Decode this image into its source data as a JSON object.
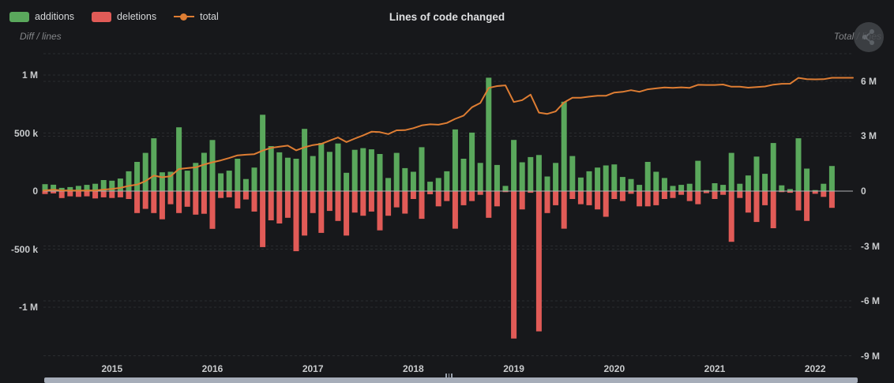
{
  "header": {
    "title": "Lines of code changed"
  },
  "legend": {
    "items": [
      {
        "label": "additions",
        "marker": "rect",
        "color": "#5aa85c"
      },
      {
        "label": "deletions",
        "marker": "rect",
        "color": "#e15b57"
      },
      {
        "label": "total",
        "marker": "line-dot",
        "color": "#de7d33"
      }
    ]
  },
  "corner_icon": "share-graph-icon",
  "colors": {
    "background": "#17181b",
    "additions": "#5aa85c",
    "deletions": "#e15b57",
    "total_line": "#de7d33",
    "zero_line": "#b0b2b5",
    "grid_line": "rgba(220,222,224,0.10)",
    "tick_text": "#c9cbcd",
    "scrollbar": "#a6adb9"
  },
  "chart_data": {
    "type": "combo-bar-line",
    "title": "Lines of code changed",
    "value_unit": "thousands of lines",
    "x": [
      "2014-05",
      "2014-06",
      "2014-07",
      "2014-08",
      "2014-09",
      "2014-10",
      "2014-11",
      "2014-12",
      "2015-01",
      "2015-02",
      "2015-03",
      "2015-04",
      "2015-05",
      "2015-06",
      "2015-07",
      "2015-08",
      "2015-09",
      "2015-10",
      "2015-11",
      "2015-12",
      "2016-01",
      "2016-02",
      "2016-03",
      "2016-04",
      "2016-05",
      "2016-06",
      "2016-07",
      "2016-08",
      "2016-09",
      "2016-10",
      "2016-11",
      "2016-12",
      "2017-01",
      "2017-02",
      "2017-03",
      "2017-04",
      "2017-05",
      "2017-06",
      "2017-07",
      "2017-08",
      "2017-09",
      "2017-10",
      "2017-11",
      "2017-12",
      "2018-01",
      "2018-02",
      "2018-03",
      "2018-04",
      "2018-05",
      "2018-06",
      "2018-07",
      "2018-08",
      "2018-09",
      "2018-10",
      "2018-11",
      "2018-12",
      "2019-01",
      "2019-02",
      "2019-03",
      "2019-04",
      "2019-05",
      "2019-06",
      "2019-07",
      "2019-08",
      "2019-09",
      "2019-10",
      "2019-11",
      "2019-12",
      "2020-01",
      "2020-02",
      "2020-03",
      "2020-04",
      "2020-05",
      "2020-06",
      "2020-07",
      "2020-08",
      "2020-09",
      "2020-10",
      "2020-11",
      "2020-12",
      "2021-01",
      "2021-02",
      "2021-03",
      "2021-04",
      "2021-05",
      "2021-06",
      "2021-07",
      "2021-08",
      "2021-09",
      "2021-10",
      "2021-11",
      "2021-12",
      "2022-01",
      "2022-02",
      "2022-03"
    ],
    "series": [
      {
        "name": "additions",
        "type": "bar",
        "axis": "left",
        "color": "#5aa85c",
        "values": [
          60,
          55,
          28,
          35,
          45,
          54,
          63,
          95,
          90,
          108,
          171,
          252,
          329,
          455,
          162,
          167,
          550,
          176,
          243,
          330,
          440,
          153,
          176,
          279,
          104,
          203,
          658,
          388,
          334,
          288,
          279,
          536,
          302,
          415,
          338,
          410,
          158,
          356,
          370,
          360,
          320,
          113,
          329,
          198,
          167,
          378,
          81,
          113,
          171,
          531,
          279,
          504,
          243,
          977,
          225,
          45,
          441,
          248,
          293,
          311,
          126,
          243,
          770,
          302,
          117,
          171,
          203,
          221,
          230,
          122,
          104,
          54,
          252,
          167,
          113,
          45,
          54,
          63,
          261,
          9,
          68,
          54,
          329,
          63,
          135,
          297,
          149,
          414,
          50,
          18,
          455,
          194,
          9,
          63,
          216
        ]
      },
      {
        "name": "deletions",
        "type": "bar",
        "axis": "left",
        "color": "#e15b57",
        "values": [
          -25,
          -20,
          -60,
          -45,
          -50,
          -45,
          -63,
          -54,
          -59,
          -54,
          -68,
          -189,
          -153,
          -189,
          -243,
          -113,
          -189,
          -135,
          -203,
          -195,
          -325,
          -59,
          -54,
          -149,
          -72,
          -176,
          -482,
          -252,
          -279,
          -230,
          -518,
          -383,
          -189,
          -360,
          -171,
          -257,
          -383,
          -185,
          -212,
          -176,
          -338,
          -212,
          -140,
          -194,
          -68,
          -239,
          -27,
          -131,
          -86,
          -324,
          -122,
          -86,
          -32,
          -230,
          -131,
          -9,
          -1270,
          -158,
          -14,
          -1208,
          -189,
          -122,
          -324,
          -68,
          -113,
          -122,
          -158,
          -221,
          -68,
          -86,
          -23,
          -131,
          -131,
          -122,
          -68,
          -59,
          -32,
          -86,
          -113,
          -18,
          -68,
          -32,
          -437,
          -59,
          -185,
          -266,
          -122,
          -320,
          -9,
          -14,
          -167,
          -257,
          -23,
          -50,
          -144
        ]
      },
      {
        "name": "total",
        "type": "line",
        "axis": "right",
        "color": "#de7d33",
        "values": [
          40,
          75,
          40,
          30,
          25,
          35,
          35,
          80,
          115,
          175,
          285,
          355,
          550,
          845,
          755,
          815,
          1210,
          1255,
          1300,
          1450,
          1575,
          1680,
          1810,
          1955,
          1990,
          2020,
          2215,
          2365,
          2425,
          2485,
          2225,
          2395,
          2515,
          2580,
          2760,
          2930,
          2680,
          2870,
          3045,
          3245,
          3225,
          3115,
          3325,
          3330,
          3440,
          3590,
          3650,
          3630,
          3725,
          3950,
          4125,
          4585,
          4815,
          5640,
          5740,
          5780,
          4870,
          4970,
          5275,
          4290,
          4220,
          4355,
          4845,
          5100,
          5105,
          5160,
          5210,
          5210,
          5385,
          5425,
          5515,
          5430,
          5565,
          5615,
          5665,
          5645,
          5670,
          5645,
          5810,
          5800,
          5800,
          5825,
          5705,
          5710,
          5655,
          5690,
          5720,
          5820,
          5865,
          5870,
          6190,
          6120,
          6105,
          6115,
          6195
        ]
      }
    ],
    "left_axis": {
      "title": "Diff / lines",
      "tick_labels": [
        "1 M",
        "500 k",
        "0",
        "-500 k",
        "-1 M"
      ],
      "tick_values": [
        1000,
        500,
        0,
        -500,
        -1000
      ],
      "range": [
        -1450,
        1100
      ]
    },
    "right_axis": {
      "title": "Total / lines",
      "tick_labels": [
        "6 M",
        "3 M",
        "0",
        "-3 M",
        "-6 M",
        "-9 M"
      ],
      "tick_values": [
        6000,
        3000,
        0,
        -3000,
        -6000,
        -9000
      ],
      "range": [
        -9200,
        7000
      ]
    },
    "x_axis": {
      "tick_labels": [
        "2015",
        "2016",
        "2017",
        "2018",
        "2019",
        "2020",
        "2021",
        "2022"
      ]
    },
    "grid": "dashed",
    "legend_position": "top-left"
  }
}
